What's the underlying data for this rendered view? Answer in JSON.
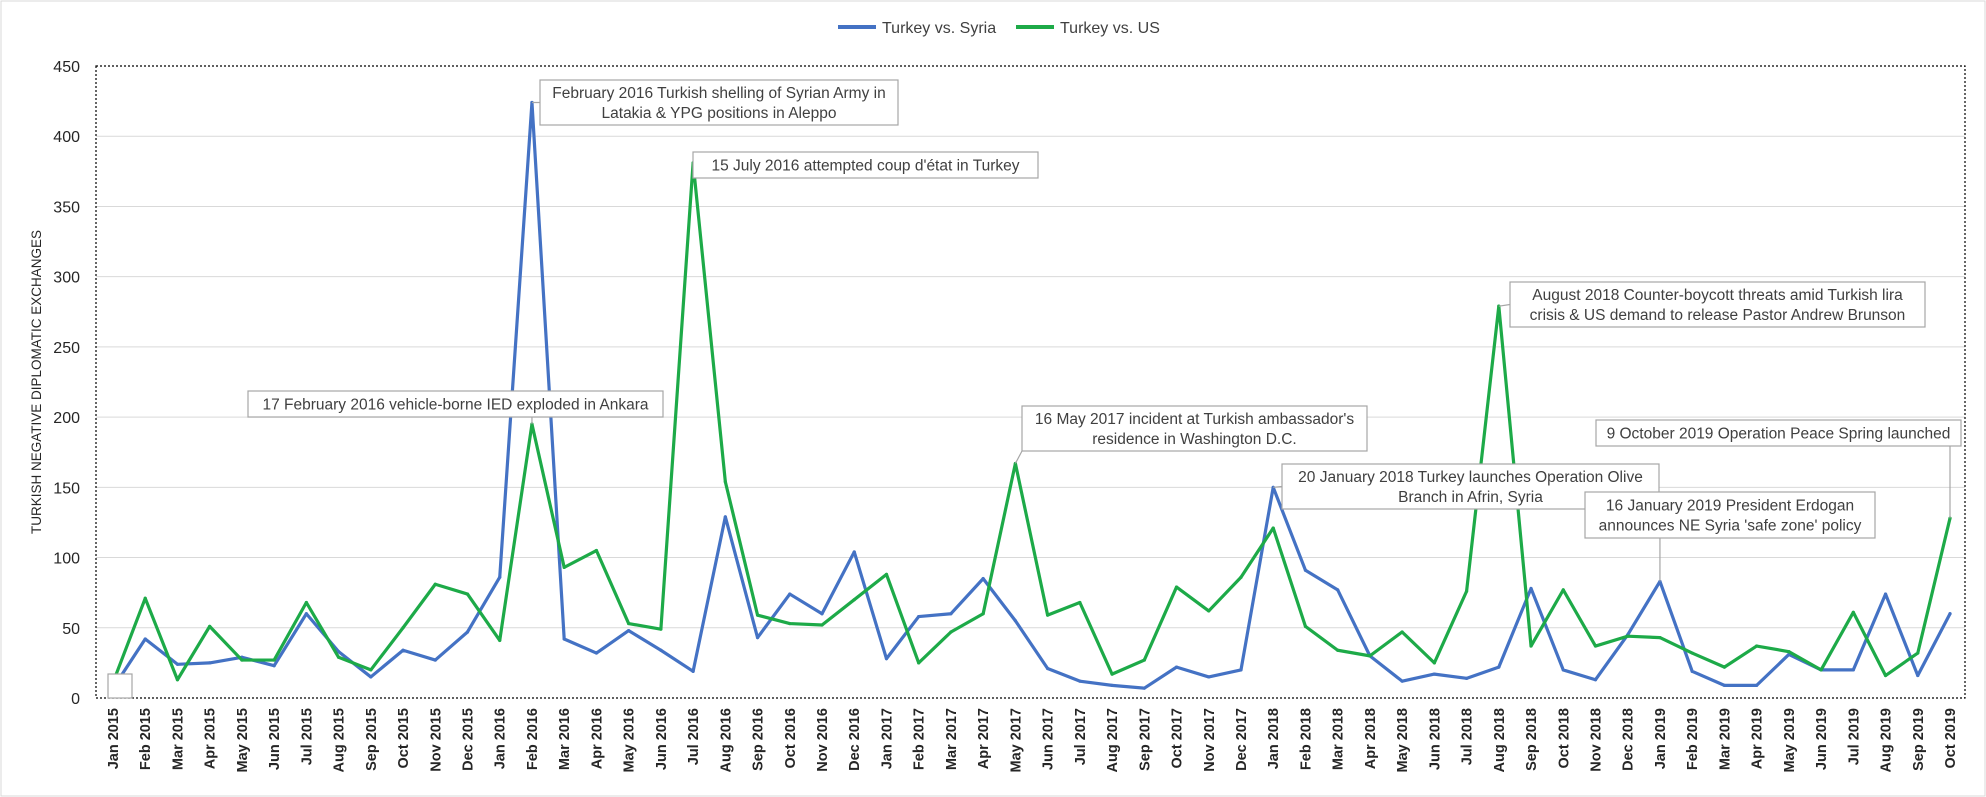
{
  "chart_data": {
    "type": "line",
    "title": "",
    "xlabel": "",
    "ylabel": "TURKISH NEGATIVE DIPLOMATIC EXCHANGES",
    "ylim": [
      0,
      450
    ],
    "yticks": [
      0,
      50,
      100,
      150,
      200,
      250,
      300,
      350,
      400,
      450
    ],
    "grid": true,
    "legend_position": "top-center",
    "categories": [
      "Jan 2015",
      "Feb 2015",
      "Mar 2015",
      "Apr 2015",
      "May 2015",
      "Jun 2015",
      "Jul 2015",
      "Aug 2015",
      "Sep 2015",
      "Oct 2015",
      "Nov 2015",
      "Dec 2015",
      "Jan 2016",
      "Feb 2016",
      "Mar 2016",
      "Apr 2016",
      "May 2016",
      "Jun 2016",
      "Jul 2016",
      "Aug 2016",
      "Sep 2016",
      "Oct 2016",
      "Nov 2016",
      "Dec 2016",
      "Jan 2017",
      "Feb 2017",
      "Mar 2017",
      "Apr 2017",
      "May 2017",
      "Jun 2017",
      "Jul 2017",
      "Aug 2017",
      "Sep 2017",
      "Oct 2017",
      "Nov 2017",
      "Dec 2017",
      "Jan 2018",
      "Feb 2018",
      "Mar 2018",
      "Apr 2018",
      "May 2018",
      "Jun 2018",
      "Jul 2018",
      "Aug 2018",
      "Sep 2018",
      "Oct 2018",
      "Nov 2018",
      "Dec 2018",
      "Jan 2019",
      "Feb 2019",
      "Mar 2019",
      "Apr 2019",
      "May 2019",
      "Jun 2019",
      "Jul 2019",
      "Aug 2019",
      "Sep 2019",
      "Oct 2019"
    ],
    "series": [
      {
        "name": "Turkey vs. Syria",
        "color": "#4472C4",
        "values": [
          7,
          42,
          24,
          25,
          29,
          23,
          60,
          33,
          15,
          34,
          27,
          47,
          86,
          424,
          42,
          32,
          48,
          34,
          19,
          129,
          43,
          74,
          60,
          104,
          28,
          58,
          60,
          85,
          55,
          21,
          12,
          9,
          7,
          22,
          15,
          20,
          150,
          91,
          77,
          30,
          12,
          17,
          14,
          22,
          78,
          20,
          13,
          45,
          83,
          19,
          9,
          9,
          31,
          20,
          20,
          74,
          16,
          60
        ]
      },
      {
        "name": "Turkey vs. US",
        "color": "#1DAA48",
        "values": [
          11,
          71,
          13,
          51,
          27,
          27,
          68,
          29,
          20,
          50,
          81,
          74,
          41,
          195,
          93,
          105,
          53,
          49,
          381,
          154,
          59,
          53,
          52,
          70,
          88,
          25,
          47,
          60,
          167,
          59,
          68,
          17,
          27,
          79,
          62,
          86,
          121,
          51,
          34,
          30,
          47,
          25,
          76,
          279,
          37,
          77,
          37,
          44,
          43,
          32,
          22,
          37,
          33,
          20,
          61,
          16,
          32,
          128
        ]
      }
    ],
    "annotations": [
      {
        "text": [
          "February 2016 Turkish shelling of Syrian Army in",
          "Latakia & YPG positions in Aleppo"
        ],
        "month": "Feb 2016",
        "value": 424
      },
      {
        "text": [
          "15 July 2016 attempted coup d'état in Turkey"
        ],
        "month": "Jul 2016",
        "value": 381
      },
      {
        "text": [
          "17 February 2016 vehicle-borne IED exploded in Ankara"
        ],
        "month": "Feb 2016",
        "value": 195
      },
      {
        "text": [
          "16 May 2017 incident at Turkish ambassador's",
          "residence in Washington D.C."
        ],
        "month": "May 2017",
        "value": 167
      },
      {
        "text": [
          "August 2018 Counter-boycott threats amid Turkish lira",
          "crisis & US demand to release Pastor Andrew Brunson"
        ],
        "month": "Aug 2018",
        "value": 279
      },
      {
        "text": [
          "20 January 2018 Turkey launches Operation Olive",
          "Branch in Afrin, Syria"
        ],
        "month": "Jan 2018",
        "value": 150
      },
      {
        "text": [
          "9 October 2019 Operation Peace Spring launched"
        ],
        "month": "Oct 2019",
        "value": 128
      },
      {
        "text": [
          "16 January 2019 President Erdogan",
          "announces NE Syria 'safe zone' policy"
        ],
        "month": "Jan 2019",
        "value": 83
      },
      {
        "text": [
          ""
        ],
        "month": "Jan 2015",
        "value": 7
      }
    ]
  }
}
